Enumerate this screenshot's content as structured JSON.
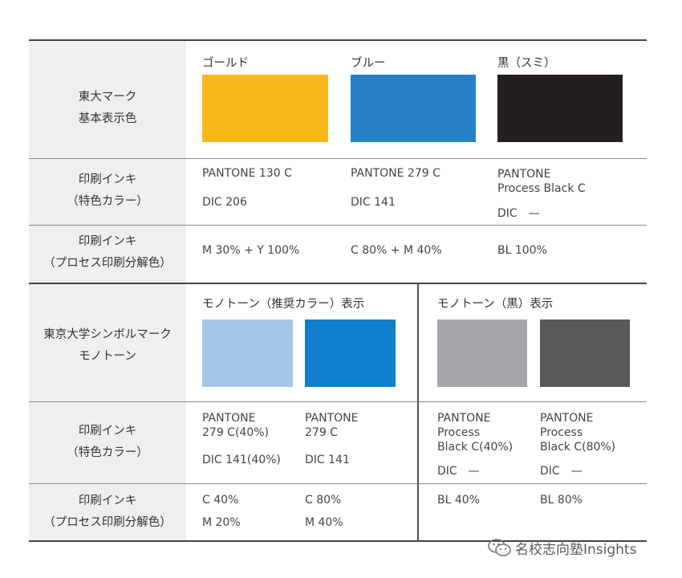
{
  "top": {
    "label": [
      "東大マーク",
      "基本表示色"
    ],
    "columns": [
      {
        "name": "ゴールド",
        "color": "#fbb81a"
      },
      {
        "name": "ブルー",
        "color": "#2580c8"
      },
      {
        "name": "黒（スミ）",
        "color": "#231f20"
      }
    ],
    "spot": {
      "label": [
        "印刷インキ",
        "（特色カラー）"
      ],
      "cells": [
        {
          "pantone": "PANTONE  130 C",
          "dic": "DIC 206"
        },
        {
          "pantone": "PANTONE  279 C",
          "dic": "DIC 141"
        },
        {
          "pantone": "PANTONE\nProcess Black C",
          "dic": "DIC　—"
        }
      ]
    },
    "process": {
      "label": [
        "印刷インキ",
        "（プロセス印刷分解色）"
      ],
      "cells": [
        "M 30% + Y 100%",
        "C 80% + M 40%",
        "BL 100%"
      ]
    }
  },
  "bottom": {
    "label": [
      "東京大学シンボルマーク",
      "モノトーン"
    ],
    "left_header": "モノトーン（推奨カラー）表示",
    "right_header": "モノトーン（黒）表示",
    "swatches": [
      "#a6c6e9",
      "#1180cc",
      "#a5a7aa",
      "#58595b"
    ],
    "spot": {
      "label": [
        "印刷インキ",
        "（特色カラー）"
      ],
      "cells": [
        {
          "pantone": "PANTONE\n279 C(40%)",
          "dic": "DIC 141(40%)"
        },
        {
          "pantone": "PANTONE\n279 C",
          "dic": "DIC 141"
        },
        {
          "pantone": "PANTONE\nProcess\nBlack C(40%)",
          "dic": "DIC　—"
        },
        {
          "pantone": "PANTONE\nProcess\nBlack C(80%)",
          "dic": "DIC　—"
        }
      ]
    },
    "process": {
      "label": [
        "印刷インキ",
        "（プロセス印刷分解色）"
      ],
      "cells": [
        [
          "C 40%",
          "M 20%"
        ],
        [
          "C 80%",
          "M 40%"
        ],
        [
          "BL 40%"
        ],
        [
          "BL 80%"
        ]
      ]
    }
  },
  "watermark": "名校志向塾Insights"
}
